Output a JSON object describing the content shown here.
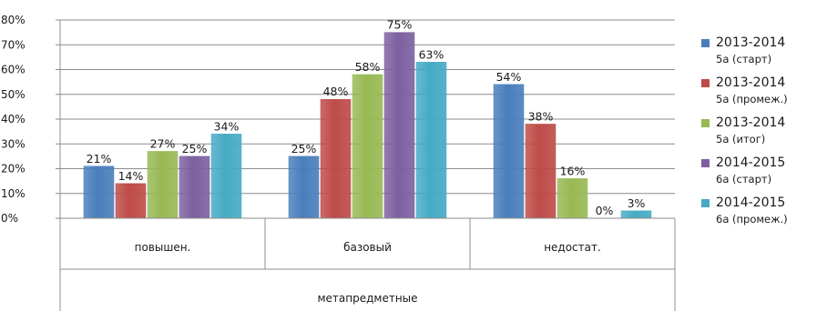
{
  "chart_data": {
    "type": "bar",
    "title": "",
    "group_label": "метапредметные",
    "categories": [
      "повышен.",
      "базовый",
      "недостат."
    ],
    "ylim": [
      0,
      80
    ],
    "yticks": [
      0,
      10,
      20,
      30,
      40,
      50,
      60,
      70,
      80
    ],
    "ytick_labels": [
      "0%",
      "10%",
      "20%",
      "30%",
      "40%",
      "50%",
      "60%",
      "70%",
      "80%"
    ],
    "grid": true,
    "legend_position": "right",
    "series": [
      {
        "name": "2013-2014 5а (старт)",
        "name_line1": "2013-2014",
        "name_line2": "5а (старт)",
        "color": "#4a7ebb",
        "values": [
          21,
          25,
          54
        ],
        "labels": [
          "21%",
          "25%",
          "54%"
        ]
      },
      {
        "name": "2013-2014 5а (промеж.)",
        "name_line1": "2013-2014",
        "name_line2": "5а (промеж.)",
        "color": "#be4b48",
        "values": [
          14,
          48,
          38
        ],
        "labels": [
          "14%",
          "48%",
          "38%"
        ]
      },
      {
        "name": "2013-2014 5а (итог)",
        "name_line1": "2013-2014",
        "name_line2": "5а (итог)",
        "color": "#98b954",
        "values": [
          27,
          58,
          16
        ],
        "labels": [
          "27%",
          "58%",
          "16%"
        ]
      },
      {
        "name": "2014-2015 6а (старт)",
        "name_line1": "2014-2015",
        "name_line2": "6а (старт)",
        "color": "#7d60a0",
        "values": [
          25,
          75,
          0
        ],
        "labels": [
          "25%",
          "75%",
          "0%"
        ]
      },
      {
        "name": "2014-2015 6а (промеж.)",
        "name_line1": "2014-2015",
        "name_line2": "6а (промеж.)",
        "color": "#46aac5",
        "values": [
          34,
          63,
          3
        ],
        "labels": [
          "34%",
          "63%",
          "3%"
        ]
      }
    ]
  }
}
